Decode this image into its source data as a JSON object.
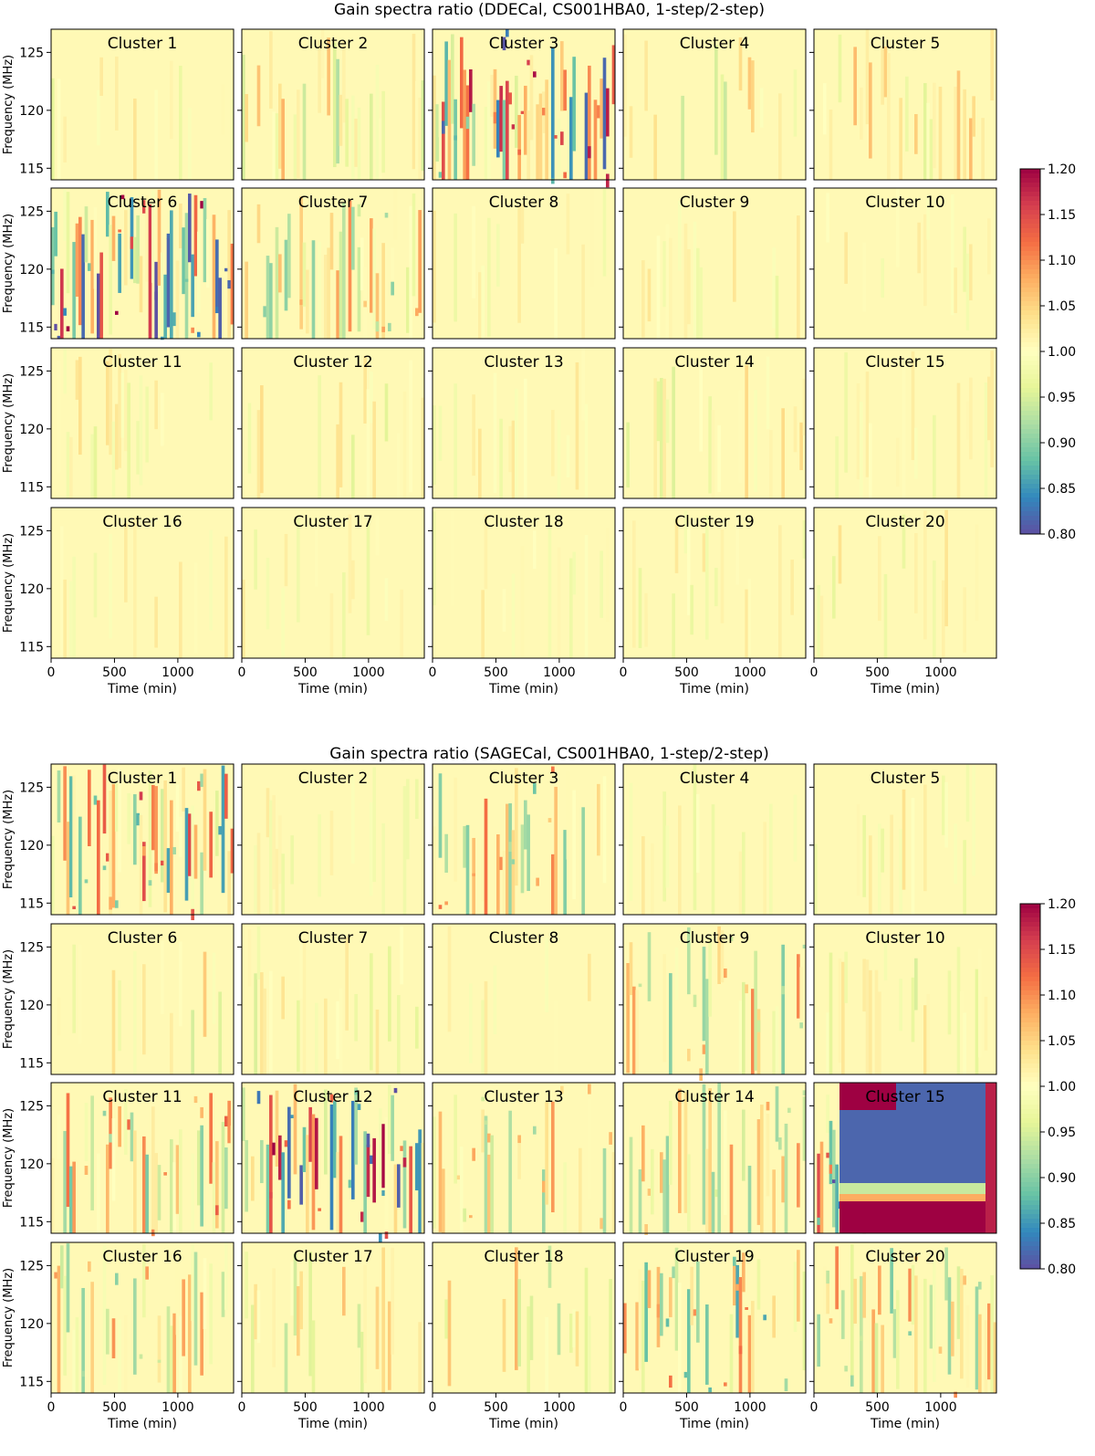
{
  "chart_data": [
    {
      "type": "heatmap",
      "title": "Gain spectra ratio (DDECal, CS001HBA0, 1-step/2-step)",
      "xlabel": "Time (min)",
      "ylabel": "Frequency (MHz)",
      "xlim": [
        0,
        1440
      ],
      "ylim": [
        114,
        127
      ],
      "xticks": [
        0,
        500,
        1000
      ],
      "yticks": [
        115,
        120,
        125
      ],
      "grid": false,
      "colorbar": {
        "range": [
          0.8,
          1.2
        ],
        "ticks": [
          "0.80",
          "0.85",
          "0.90",
          "0.95",
          "1.00",
          "1.05",
          "1.10",
          "1.15",
          "1.20"
        ],
        "colormap": "Spectral_r"
      },
      "panels": [
        {
          "label": "Cluster 1",
          "deviation": 0.08
        },
        {
          "label": "Cluster 2",
          "deviation": 0.3
        },
        {
          "label": "Cluster 3",
          "deviation": 0.9
        },
        {
          "label": "Cluster 4",
          "deviation": 0.25
        },
        {
          "label": "Cluster 5",
          "deviation": 0.25
        },
        {
          "label": "Cluster 6",
          "deviation": 1.0
        },
        {
          "label": "Cluster 7",
          "deviation": 0.45
        },
        {
          "label": "Cluster 8",
          "deviation": 0.05
        },
        {
          "label": "Cluster 9",
          "deviation": 0.05
        },
        {
          "label": "Cluster 10",
          "deviation": 0.05
        },
        {
          "label": "Cluster 11",
          "deviation": 0.1
        },
        {
          "label": "Cluster 12",
          "deviation": 0.15
        },
        {
          "label": "Cluster 13",
          "deviation": 0.05
        },
        {
          "label": "Cluster 14",
          "deviation": 0.15
        },
        {
          "label": "Cluster 15",
          "deviation": 0.05
        },
        {
          "label": "Cluster 16",
          "deviation": 0.05
        },
        {
          "label": "Cluster 17",
          "deviation": 0.05
        },
        {
          "label": "Cluster 18",
          "deviation": 0.05
        },
        {
          "label": "Cluster 19",
          "deviation": 0.05
        },
        {
          "label": "Cluster 20",
          "deviation": 0.08
        }
      ]
    },
    {
      "type": "heatmap",
      "title": "Gain spectra ratio (SAGECal, CS001HBA0, 1-step/2-step)",
      "xlabel": "Time (min)",
      "ylabel": "Frequency (MHz)",
      "xlim": [
        0,
        1440
      ],
      "ylim": [
        114,
        127
      ],
      "xticks": [
        0,
        500,
        1000
      ],
      "yticks": [
        115,
        120,
        125
      ],
      "grid": false,
      "colorbar": {
        "range": [
          0.8,
          1.2
        ],
        "ticks": [
          "0.80",
          "0.85",
          "0.90",
          "0.95",
          "1.00",
          "1.05",
          "1.10",
          "1.15",
          "1.20"
        ],
        "colormap": "Spectral_r"
      },
      "panels": [
        {
          "label": "Cluster 1",
          "deviation": 0.75
        },
        {
          "label": "Cluster 2",
          "deviation": 0.05
        },
        {
          "label": "Cluster 3",
          "deviation": 0.55
        },
        {
          "label": "Cluster 4",
          "deviation": 0.05
        },
        {
          "label": "Cluster 5",
          "deviation": 0.1
        },
        {
          "label": "Cluster 6",
          "deviation": 0.2
        },
        {
          "label": "Cluster 7",
          "deviation": 0.15
        },
        {
          "label": "Cluster 8",
          "deviation": 0.05
        },
        {
          "label": "Cluster 9",
          "deviation": 0.45
        },
        {
          "label": "Cluster 10",
          "deviation": 0.15
        },
        {
          "label": "Cluster 11",
          "deviation": 0.6
        },
        {
          "label": "Cluster 12",
          "deviation": 0.95
        },
        {
          "label": "Cluster 13",
          "deviation": 0.4
        },
        {
          "label": "Cluster 14",
          "deviation": 0.4
        },
        {
          "label": "Cluster 15",
          "deviation": 1.0,
          "pattern": "saturated-band"
        },
        {
          "label": "Cluster 16",
          "deviation": 0.45
        },
        {
          "label": "Cluster 17",
          "deviation": 0.3
        },
        {
          "label": "Cluster 18",
          "deviation": 0.3
        },
        {
          "label": "Cluster 19",
          "deviation": 0.65
        },
        {
          "label": "Cluster 20",
          "deviation": 0.5
        }
      ]
    }
  ]
}
